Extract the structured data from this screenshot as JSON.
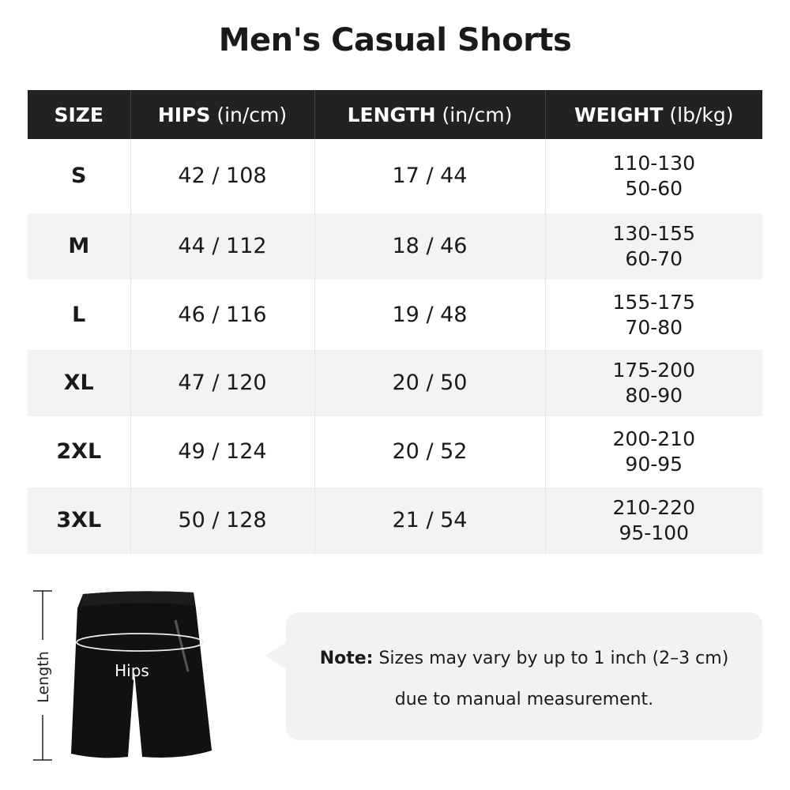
{
  "title": "Men's Casual Shorts",
  "table": {
    "headers": [
      {
        "bold": "SIZE",
        "unit": ""
      },
      {
        "bold": "HIPS",
        "unit": " (in/cm)"
      },
      {
        "bold": "LENGTH",
        "unit": " (in/cm)"
      },
      {
        "bold": "WEIGHT",
        "unit": " (lb/kg)"
      }
    ],
    "rows": [
      {
        "size": "S",
        "hips": "42 / 108",
        "length": "17 / 44",
        "weight_lb": "110-130",
        "weight_kg": "50-60"
      },
      {
        "size": "M",
        "hips": "44 / 112",
        "length": "18 / 46",
        "weight_lb": "130-155",
        "weight_kg": "60-70"
      },
      {
        "size": "L",
        "hips": "46 / 116",
        "length": "19 / 48",
        "weight_lb": "155-175",
        "weight_kg": "70-80"
      },
      {
        "size": "XL",
        "hips": "47 / 120",
        "length": "20 / 50",
        "weight_lb": "175-200",
        "weight_kg": "80-90"
      },
      {
        "size": "2XL",
        "hips": "49 / 124",
        "length": "20 / 52",
        "weight_lb": "200-210",
        "weight_kg": "90-95"
      },
      {
        "size": "3XL",
        "hips": "50 / 128",
        "length": "21 / 54",
        "weight_lb": "210-220",
        "weight_kg": "95-100"
      }
    ]
  },
  "diagram": {
    "length_label": "Length",
    "hips_label": "Hips"
  },
  "note": {
    "label": "Note:",
    "line1": " Sizes may vary by up to 1 inch (2–3 cm)",
    "line2": "due to manual measurement."
  },
  "colors": {
    "header_bg": "#222222",
    "alt_row": "#f3f3f3",
    "note_bg": "#f2f2f2"
  }
}
